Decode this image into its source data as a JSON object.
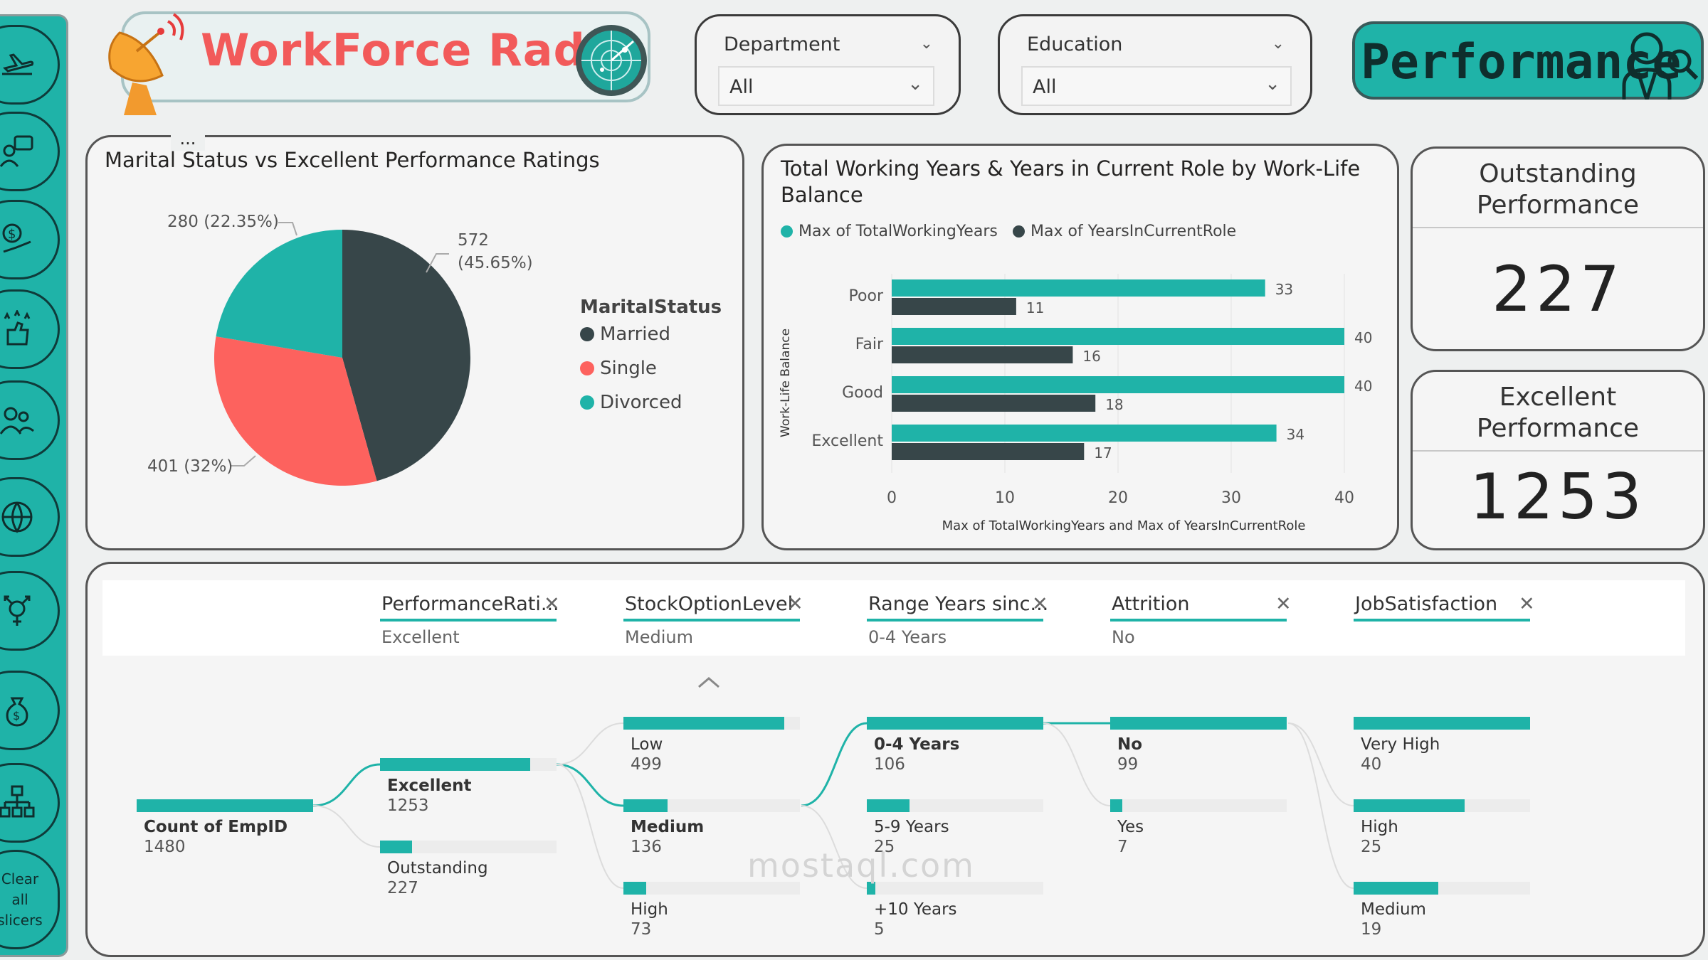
{
  "header": {
    "title": "WorkForce Radar",
    "more_options": "..."
  },
  "sidebar": {
    "icons": [
      "airplane-icon",
      "chat-bubble-icon",
      "salary-icon",
      "rating-icon",
      "people-icon",
      "globe-icon",
      "gender-icon",
      "money-bag-icon",
      "org-chart-icon"
    ],
    "clear_label": "Clear all slicers"
  },
  "slicers": [
    {
      "label": "Department",
      "value": "All"
    },
    {
      "label": "Education",
      "value": "All"
    }
  ],
  "page_badge": "Performance",
  "pie_card": {
    "title": "Marital Status vs Excellent Performance Ratings",
    "legend_title": "MaritalStatus",
    "legend": [
      {
        "name": "Married",
        "color": "#374649"
      },
      {
        "name": "Single",
        "color": "#fd625e"
      },
      {
        "name": "Divorced",
        "color": "#1fb3a8"
      }
    ],
    "labels": {
      "married_count": "572",
      "married_pct": "(45.65%)",
      "divorced": "280 (22.35%)",
      "single": "401 (32%)"
    }
  },
  "bar_card": {
    "title_line1": "Total Working Years & Years in Current Role by Work-Life",
    "title_line2": "Balance",
    "legend": [
      {
        "name": "Max of TotalWorkingYears",
        "color": "#1fb3a8"
      },
      {
        "name": "Max of YearsInCurrentRole",
        "color": "#374649"
      }
    ],
    "ylabel": "Work-Life Balance",
    "xlabel": "Max of TotalWorkingYears and Max of YearsInCurrentRole",
    "ticks": [
      "0",
      "10",
      "20",
      "30",
      "40"
    ]
  },
  "chart_data": [
    {
      "type": "pie",
      "title": "Marital Status vs Excellent Performance Ratings",
      "categories": [
        "Married",
        "Single",
        "Divorced"
      ],
      "values": [
        572,
        401,
        280
      ],
      "percents": [
        45.65,
        32,
        22.35
      ]
    },
    {
      "type": "bar",
      "orientation": "horizontal",
      "title": "Total Working Years & Years in Current Role by Work-Life Balance",
      "categories": [
        "Poor",
        "Fair",
        "Good",
        "Excellent"
      ],
      "series": [
        {
          "name": "Max of TotalWorkingYears",
          "values": [
            33,
            40,
            40,
            34
          ]
        },
        {
          "name": "Max of YearsInCurrentRole",
          "values": [
            11,
            16,
            18,
            17
          ]
        }
      ],
      "xlabel": "Max of TotalWorkingYears and Max of YearsInCurrentRole",
      "ylabel": "Work-Life Balance",
      "xlim": [
        0,
        40
      ],
      "grid": true,
      "legend": "top-left"
    }
  ],
  "kpis": [
    {
      "title_line1": "Outstanding",
      "title_line2": "Performance",
      "value": "227"
    },
    {
      "title_line1": "Excellent",
      "title_line2": "Performance",
      "value": "1253"
    }
  ],
  "decomp": {
    "columns": [
      {
        "title": "PerformanceRati...",
        "selected": "Excellent"
      },
      {
        "title": "StockOptionLevel",
        "selected": "Medium"
      },
      {
        "title": "Range Years sinc...",
        "selected": "0-4 Years"
      },
      {
        "title": "Attrition",
        "selected": "No"
      },
      {
        "title": "JobSatisfaction",
        "selected": ""
      }
    ],
    "root": {
      "label": "Count of EmpID",
      "value": "1480"
    },
    "levels": [
      [
        {
          "label": "Excellent",
          "value": "1253",
          "fill": 0.85,
          "bold": true
        },
        {
          "label": "Outstanding",
          "value": "227",
          "fill": 0.18,
          "bold": false
        }
      ],
      [
        {
          "label": "Low",
          "value": "499",
          "fill": 0.91,
          "bold": false
        },
        {
          "label": "Medium",
          "value": "136",
          "fill": 0.25,
          "bold": true
        },
        {
          "label": "High",
          "value": "73",
          "fill": 0.13,
          "bold": false
        }
      ],
      [
        {
          "label": "0-4 Years",
          "value": "106",
          "fill": 1.0,
          "bold": true
        },
        {
          "label": "5-9 Years",
          "value": "25",
          "fill": 0.24,
          "bold": false
        },
        {
          "label": "+10 Years",
          "value": "5",
          "fill": 0.05,
          "bold": false
        }
      ],
      [
        {
          "label": "No",
          "value": "99",
          "fill": 1.0,
          "bold": true
        },
        {
          "label": "Yes",
          "value": "7",
          "fill": 0.07,
          "bold": false
        }
      ],
      [
        {
          "label": "Very High",
          "value": "40",
          "fill": 1.0,
          "bold": false
        },
        {
          "label": "High",
          "value": "25",
          "fill": 0.63,
          "bold": false
        },
        {
          "label": "Medium",
          "value": "19",
          "fill": 0.48,
          "bold": false
        }
      ]
    ]
  },
  "watermark": "mostaql.com",
  "colors": {
    "teal": "#1fb3a8",
    "dark": "#374649",
    "coral": "#fd625e",
    "title_red": "#f25a5a"
  }
}
